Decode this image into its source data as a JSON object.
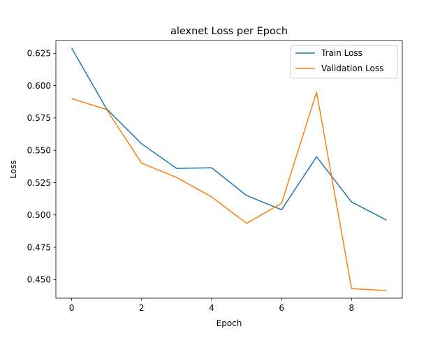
{
  "chart_data": {
    "type": "line",
    "title": "alexnet Loss per Epoch",
    "xlabel": "Epoch",
    "ylabel": "Loss",
    "x": [
      0,
      1,
      2,
      3,
      4,
      5,
      6,
      7,
      8,
      9
    ],
    "series": [
      {
        "name": "Train Loss",
        "color": "#1f77b4",
        "values": [
          0.629,
          0.582,
          0.555,
          0.536,
          0.5365,
          0.515,
          0.504,
          0.545,
          0.51,
          0.496
        ]
      },
      {
        "name": "Validation Loss",
        "color": "#ff7f0e",
        "values": [
          0.59,
          0.5815,
          0.54,
          0.529,
          0.514,
          0.4935,
          0.509,
          0.595,
          0.443,
          0.4415
        ]
      }
    ],
    "xlim": [
      -0.45,
      9.45
    ],
    "ylim": [
      0.4356,
      0.6349
    ],
    "x_ticks": [
      {
        "value": 0,
        "label": "0"
      },
      {
        "value": 2,
        "label": "2"
      },
      {
        "value": 4,
        "label": "4"
      },
      {
        "value": 6,
        "label": "6"
      },
      {
        "value": 8,
        "label": "8"
      }
    ],
    "y_ticks": [
      {
        "value": 0.45,
        "label": "0.450"
      },
      {
        "value": 0.475,
        "label": "0.475"
      },
      {
        "value": 0.5,
        "label": "0.500"
      },
      {
        "value": 0.525,
        "label": "0.525"
      },
      {
        "value": 0.55,
        "label": "0.550"
      },
      {
        "value": 0.575,
        "label": "0.575"
      },
      {
        "value": 0.6,
        "label": "0.600"
      },
      {
        "value": 0.625,
        "label": "0.625"
      }
    ],
    "grid": false,
    "legend_position": "top-right"
  }
}
